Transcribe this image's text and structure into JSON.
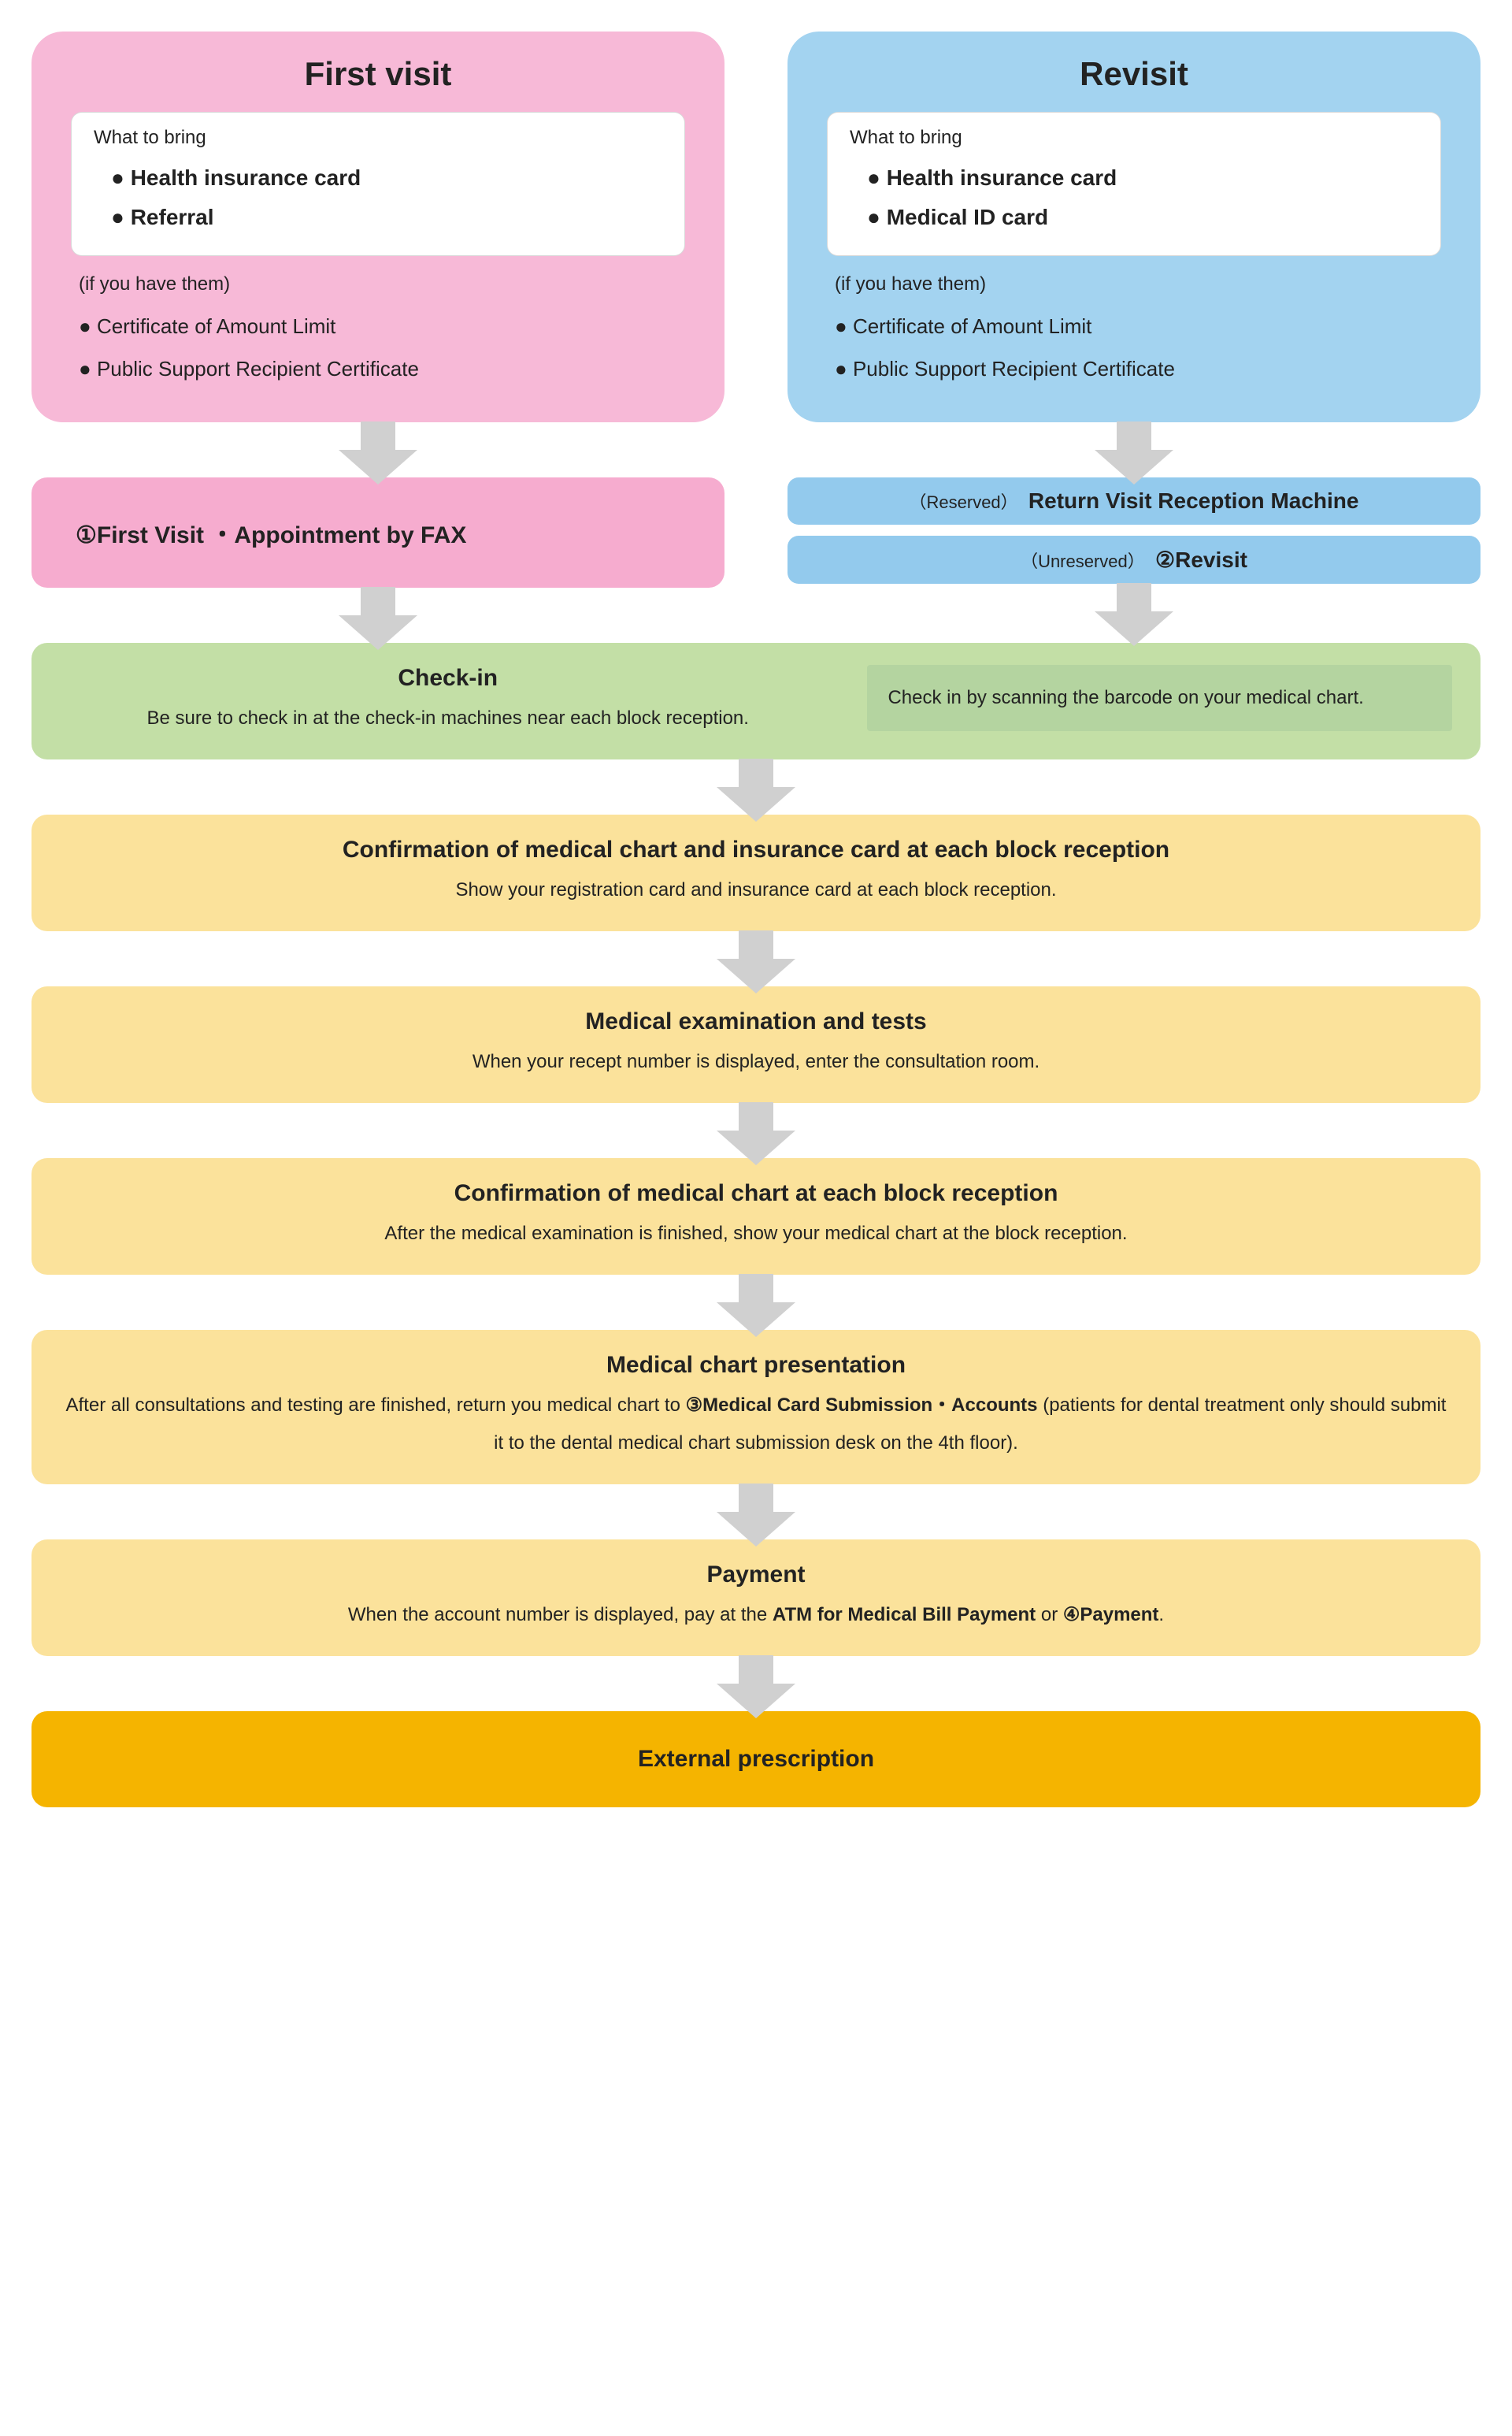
{
  "colors": {
    "pink": "#f7b9d7",
    "pinkLt": "#f6accf",
    "blue": "#a3d3f0",
    "blueLt": "#93caed",
    "green": "#c3dfa6",
    "greenD": "#b4d4a0",
    "yellow": "#fbe29b",
    "orange": "#f5b400",
    "arrow": "#d0d0d0",
    "text": "#222222"
  },
  "firstVisit": {
    "title": "First visit",
    "bringLabel": "What to bring",
    "bring": [
      "Health insurance card",
      "Referral"
    ],
    "ifHaveLabel": "(if you have them)",
    "extras": [
      "Certificate of Amount Limit",
      "Public Support Recipient Certificate"
    ],
    "action": "①First Visit ・Appointment by FAX"
  },
  "revisit": {
    "title": "Revisit",
    "bringLabel": "What to bring",
    "bring": [
      "Health insurance card",
      "Medical ID card"
    ],
    "ifHaveLabel": "(if you have them)",
    "extras": [
      "Certificate of Amount Limit",
      "Public Support Recipient Certificate"
    ],
    "reserved": {
      "tag": "（Reserved）",
      "label": "Return Visit Reception Machine"
    },
    "unreserved": {
      "tag": "（Unreserved）",
      "label": "②Revisit"
    }
  },
  "checkin": {
    "title": "Check-in",
    "body": "Be sure to check in at the check-in machines near each block reception.",
    "sideNote": "Check in by scanning the barcode on your medical chart."
  },
  "steps": [
    {
      "title": "Confirmation of medical chart and insurance card at each block reception",
      "body": "Show your registration card and insurance card at each block reception."
    },
    {
      "title": "Medical examination and tests",
      "body": "When your recept number is displayed, enter the consultation room."
    },
    {
      "title": "Confirmation of medical chart at each block reception",
      "body": "After the medical examination is finished, show your medical chart at the block reception."
    },
    {
      "title": "Medical chart presentation",
      "body": "After all consultations and testing are finished, return you medical chart to ③Medical Card Submission・Accounts (patients for dental treatment only should submit it to the dental medical chart submission desk on the 4th floor)."
    },
    {
      "title": "Payment",
      "body": "When the account number is displayed, pay at the ATM for Medical Bill Payment or ④Payment."
    }
  ],
  "final": "External prescription"
}
